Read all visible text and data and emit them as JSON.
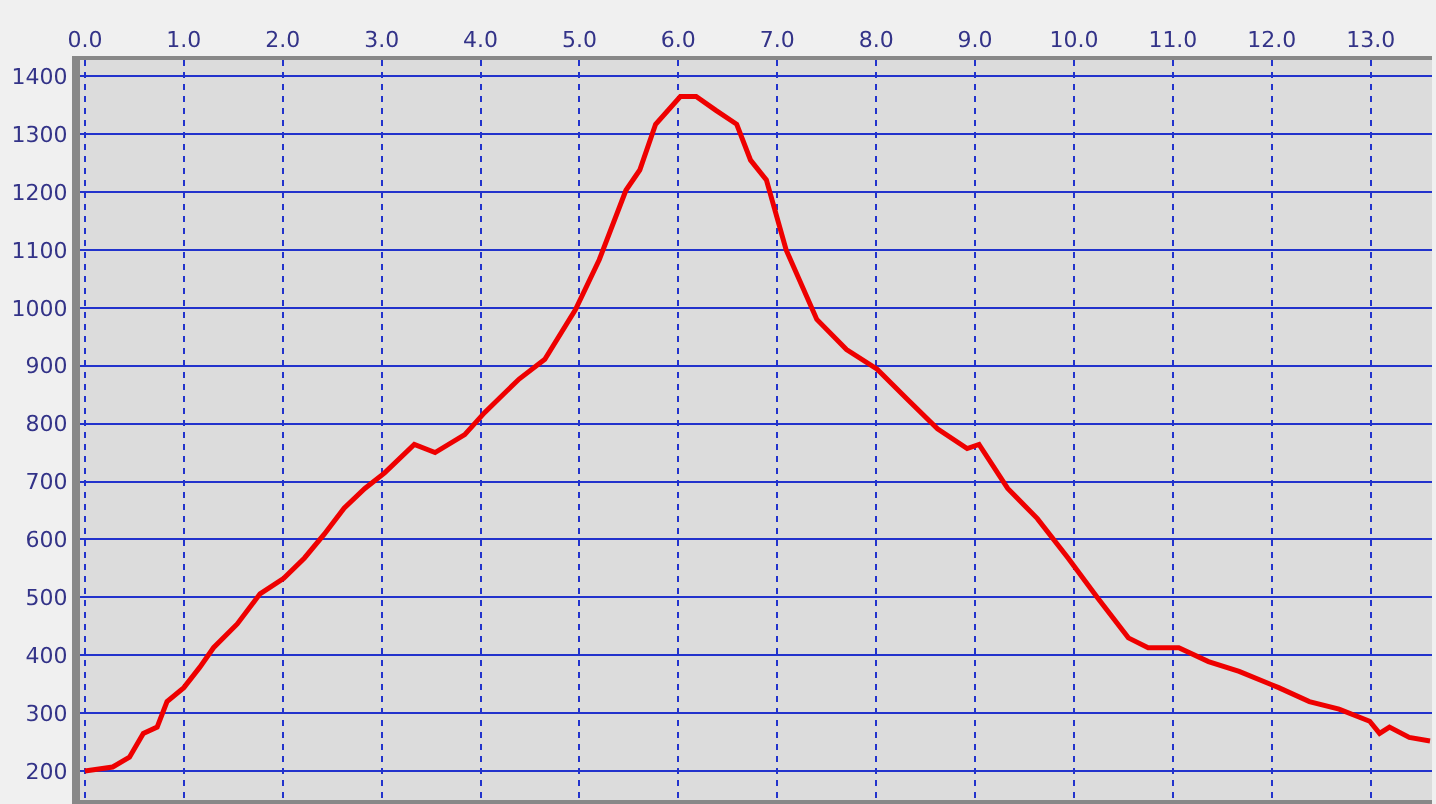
{
  "chart_data": {
    "type": "line",
    "x": [
      0,
      0.28,
      0.45,
      0.59,
      0.73,
      0.83,
      1.0,
      1.16,
      1.3,
      1.54,
      1.77,
      2.01,
      2.22,
      2.42,
      2.62,
      2.83,
      3.03,
      3.33,
      3.54,
      3.84,
      4.04,
      4.39,
      4.65,
      4.96,
      5.2,
      5.47,
      5.61,
      5.77,
      6.02,
      6.18,
      6.38,
      6.59,
      6.73,
      6.89,
      7.09,
      7.4,
      7.7,
      8.01,
      8.31,
      8.62,
      8.92,
      9.04,
      9.33,
      9.63,
      9.94,
      10.24,
      10.55,
      10.75,
      11.06,
      11.36,
      11.67,
      12.07,
      12.38,
      12.68,
      12.99,
      13.09,
      13.19,
      13.39,
      13.6
    ],
    "series": [
      {
        "color": "#ee0000",
        "values": [
          200,
          207,
          224,
          265,
          276,
          320,
          344,
          379,
          413,
          454,
          506,
          533,
          568,
          609,
          654,
          688,
          715,
          764,
          750,
          781,
          819,
          877,
          911,
          997,
          1083,
          1203,
          1238,
          1317,
          1365,
          1365,
          1341,
          1317,
          1255,
          1221,
          1100,
          980,
          928,
          894,
          843,
          791,
          757,
          764,
          688,
          636,
          568,
          499,
          430,
          413,
          413,
          389,
          372,
          344,
          320,
          307,
          286,
          265,
          276,
          258,
          252
        ]
      }
    ],
    "xlim": [
      -0.05,
      13.62
    ],
    "ylim": [
      150,
      1428
    ],
    "xticks": [
      {
        "value": 0,
        "label": "0.0"
      },
      {
        "value": 1,
        "label": "1.0"
      },
      {
        "value": 2,
        "label": "2.0"
      },
      {
        "value": 3,
        "label": "3.0"
      },
      {
        "value": 4,
        "label": "4.0"
      },
      {
        "value": 5,
        "label": "5.0"
      },
      {
        "value": 6,
        "label": "6.0"
      },
      {
        "value": 7,
        "label": "7.0"
      },
      {
        "value": 8,
        "label": "8.0"
      },
      {
        "value": 9,
        "label": "9.0"
      },
      {
        "value": 10,
        "label": "10.0"
      },
      {
        "value": 11,
        "label": "11.0"
      },
      {
        "value": 12,
        "label": "12.0"
      },
      {
        "value": 13,
        "label": "13.0"
      }
    ],
    "yticks": [
      200,
      300,
      400,
      500,
      600,
      700,
      800,
      900,
      1000,
      1100,
      1200,
      1300,
      1400
    ],
    "grid": true,
    "legend": false,
    "marker": "none",
    "line_style": "solid"
  }
}
